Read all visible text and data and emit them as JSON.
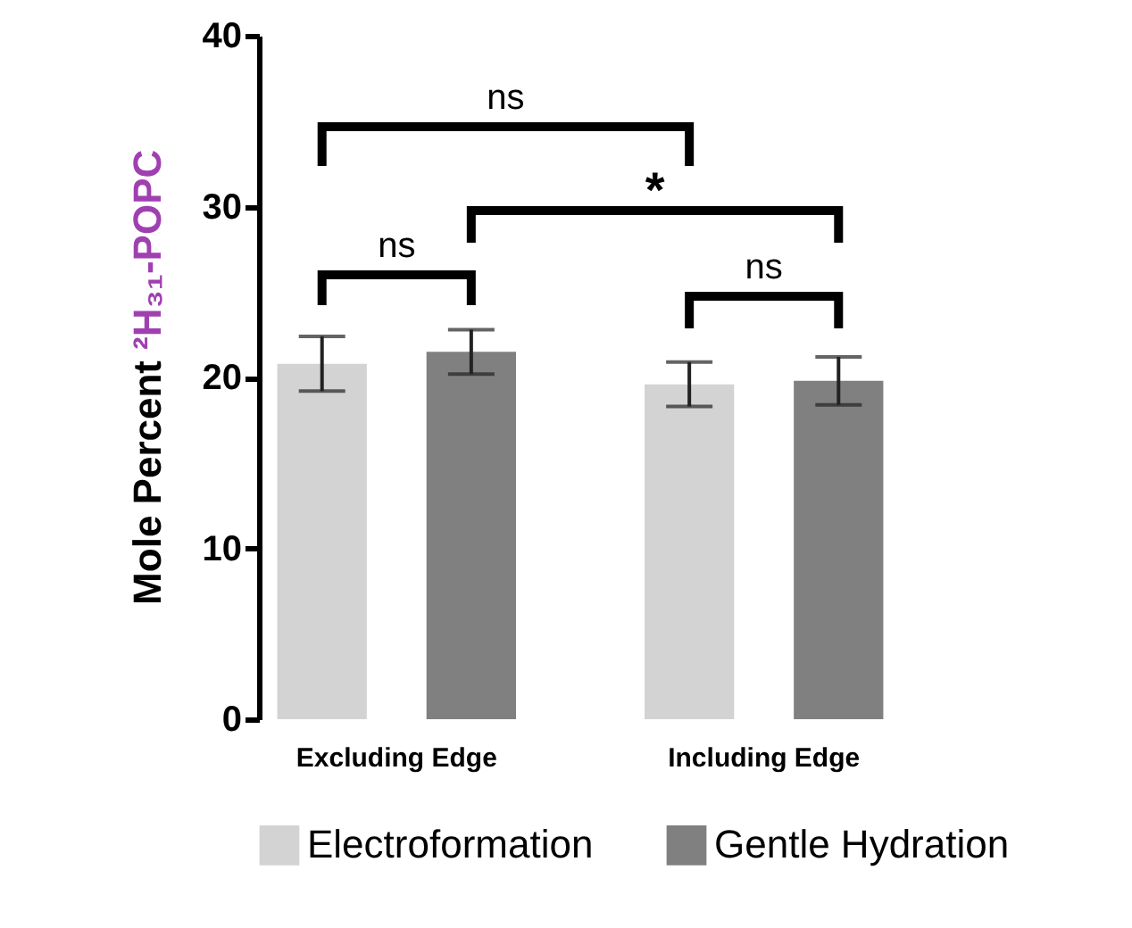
{
  "chart_data": {
    "type": "bar",
    "ylabel": "Mole Percent ²H₃₁-POPC",
    "categories": [
      "Excluding Edge",
      "Including Edge"
    ],
    "series": [
      {
        "name": "Electroformation",
        "color": "#d3d3d3",
        "values": [
          20.8,
          19.6
        ],
        "errors": [
          1.6,
          1.3
        ]
      },
      {
        "name": "Gentle Hydration",
        "color": "#808080",
        "values": [
          21.5,
          19.8
        ],
        "errors": [
          1.3,
          1.4
        ]
      }
    ],
    "ylim": [
      0,
      40
    ],
    "yticks": [
      0,
      10,
      20,
      30,
      40
    ],
    "grid": false,
    "legend": "bottom",
    "annotations": [
      "ns",
      "*",
      "ns",
      "ns"
    ]
  }
}
